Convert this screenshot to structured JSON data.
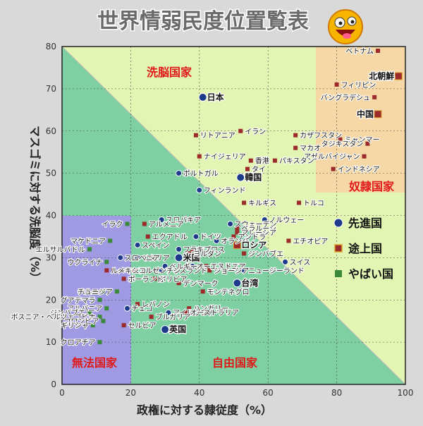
{
  "chart_data": {
    "type": "scatter",
    "title": "世界情弱民度位置覧表",
    "xlabel": "政権に対する隷従度（%）",
    "ylabel": "マスゴミに対する洗脳度（%）",
    "xlim": [
      0,
      100
    ],
    "ylim": [
      0,
      80
    ],
    "x_ticks": [
      "0",
      "20",
      "40",
      "60",
      "80",
      "100"
    ],
    "y_ticks": [
      "0",
      "10",
      "20",
      "30",
      "40",
      "50",
      "60",
      "70",
      "80"
    ],
    "grid": true,
    "regions": [
      "洗脳国家",
      "奴隷国家",
      "無法国家",
      "自由国家"
    ],
    "legend": [
      {
        "label": "先進国",
        "color": "#1e3a8a"
      },
      {
        "label": "途上国",
        "color": "#9c2a2a"
      },
      {
        "label": "やばい国",
        "color": "#3a8a3a"
      }
    ],
    "series": [
      {
        "name": "先進国",
        "points": [
          {
            "label": "日本",
            "x": 41,
            "y": 68
          },
          {
            "label": "韓国",
            "x": 52,
            "y": 49
          },
          {
            "label": "フィンランド",
            "x": 40,
            "y": 46
          },
          {
            "label": "ポルトガル",
            "x": 34,
            "y": 50
          },
          {
            "label": "スウェーデン",
            "x": 49,
            "y": 38
          },
          {
            "label": "ノルウェー",
            "x": 59,
            "y": 39
          },
          {
            "label": "ドイツ",
            "x": 39,
            "y": 35
          },
          {
            "label": "オランダ",
            "x": 45,
            "y": 34
          },
          {
            "label": "フランス",
            "x": 34,
            "y": 32
          },
          {
            "label": "米国",
            "x": 34,
            "y": 30
          },
          {
            "label": "イタリア",
            "x": 22,
            "y": 30
          },
          {
            "label": "スペイン",
            "x": 22,
            "y": 33
          },
          {
            "label": "スロベニア",
            "x": 17,
            "y": 30
          },
          {
            "label": "オーストリア",
            "x": 38,
            "y": 28
          },
          {
            "label": "アイスランド",
            "x": 29,
            "y": 27
          },
          {
            "label": "スイス",
            "x": 65,
            "y": 29
          },
          {
            "label": "ニュージーランド",
            "x": 53,
            "y": 27
          },
          {
            "label": "台湾",
            "x": 51,
            "y": 24
          },
          {
            "label": "英国",
            "x": 30,
            "y": 13
          },
          {
            "label": "アイルランド",
            "x": 31,
            "y": 17
          },
          {
            "label": "チェコ",
            "x": 19,
            "y": 18
          },
          {
            "label": "スロバキア",
            "x": 29,
            "y": 39
          },
          {
            "label": "ベルギー",
            "x": 30,
            "y": 28
          }
        ]
      },
      {
        "name": "途上国",
        "points": [
          {
            "label": "ベトナム",
            "x": 92,
            "y": 79
          },
          {
            "label": "北朝鮮",
            "x": 98,
            "y": 73
          },
          {
            "label": "フィリピン",
            "x": 80,
            "y": 71
          },
          {
            "label": "バングラデシュ",
            "x": 91,
            "y": 68
          },
          {
            "label": "中国",
            "x": 92,
            "y": 64
          },
          {
            "label": "イラン",
            "x": 52,
            "y": 60
          },
          {
            "label": "リトアニア",
            "x": 39,
            "y": 59
          },
          {
            "label": "カザフスタン",
            "x": 68,
            "y": 59
          },
          {
            "label": "ミャンマー",
            "x": 81,
            "y": 58
          },
          {
            "label": "タジキスタン",
            "x": 89,
            "y": 57
          },
          {
            "label": "マカオ",
            "x": 68,
            "y": 56
          },
          {
            "label": "アゼルバイジャン",
            "x": 88,
            "y": 54
          },
          {
            "label": "ナイジェリア",
            "x": 40,
            "y": 54
          },
          {
            "label": "香港",
            "x": 55,
            "y": 53
          },
          {
            "label": "パキスタン",
            "x": 62,
            "y": 53
          },
          {
            "label": "タイ",
            "x": 54,
            "y": 51
          },
          {
            "label": "インドネシア",
            "x": 79,
            "y": 51
          },
          {
            "label": "キルギス",
            "x": 53,
            "y": 43
          },
          {
            "label": "トルコ",
            "x": 69,
            "y": 43
          },
          {
            "label": "ベラルーシ",
            "x": 51,
            "y": 37
          },
          {
            "label": "マレーシア",
            "x": 51,
            "y": 36
          },
          {
            "label": "アンドラ",
            "x": 50,
            "y": 35
          },
          {
            "label": "ロシア",
            "x": 51,
            "y": 33
          },
          {
            "label": "エチオピア",
            "x": 66,
            "y": 34
          },
          {
            "label": "ジンバブエ",
            "x": 53,
            "y": 31
          },
          {
            "label": "キプロス",
            "x": 38,
            "y": 32
          },
          {
            "label": "ヨルダン",
            "x": 37,
            "y": 31
          },
          {
            "label": "エクアドル",
            "x": 25,
            "y": 35
          },
          {
            "label": "アルメニア",
            "x": 24,
            "y": 38
          },
          {
            "label": "アルゼンチン",
            "x": 21,
            "y": 27
          },
          {
            "label": "エストニア",
            "x": 42,
            "y": 28
          },
          {
            "label": "ジョージア",
            "x": 43,
            "y": 27
          },
          {
            "label": "ルーマニア",
            "x": 13,
            "y": 27
          },
          {
            "label": "メキシコ",
            "x": 15,
            "y": 27
          },
          {
            "label": "ボリビア",
            "x": 27,
            "y": 25
          },
          {
            "label": "デンマーク",
            "x": 34,
            "y": 24
          },
          {
            "label": "ポーランド",
            "x": 18,
            "y": 25
          },
          {
            "label": "モンテネグロ",
            "x": 41,
            "y": 22
          },
          {
            "label": "ハンガリー",
            "x": 37,
            "y": 18
          },
          {
            "label": "オーストラリア",
            "x": 36,
            "y": 17
          },
          {
            "label": "レバノン",
            "x": 22,
            "y": 19
          },
          {
            "label": "ブルガリア",
            "x": 26,
            "y": 16
          },
          {
            "label": "セルビア",
            "x": 18,
            "y": 14
          }
        ]
      },
      {
        "name": "やばい国",
        "points": [
          {
            "label": "イラク",
            "x": 19,
            "y": 38
          },
          {
            "label": "マケドニア",
            "x": 14,
            "y": 34
          },
          {
            "label": "ウクライナ",
            "x": 13,
            "y": 29
          },
          {
            "label": "エルサルバドル",
            "x": 8,
            "y": 32
          },
          {
            "label": "ペルー",
            "x": 12,
            "y": 22
          },
          {
            "label": "チュニジア",
            "x": 16,
            "y": 22
          },
          {
            "label": "グアテマラ",
            "x": 11,
            "y": 20
          },
          {
            "label": "アルバニア",
            "x": 13,
            "y": 18
          },
          {
            "label": "ジンバブエ",
            "x": 8,
            "y": 17
          },
          {
            "label": "ボスニア・ヘルツェゴビナ",
            "x": 11,
            "y": 16
          },
          {
            "label": "コロンビア",
            "x": 12,
            "y": 15
          },
          {
            "label": "ギリシャ",
            "x": 9,
            "y": 14
          },
          {
            "label": "クロアチア",
            "x": 11,
            "y": 10
          }
        ]
      }
    ]
  }
}
